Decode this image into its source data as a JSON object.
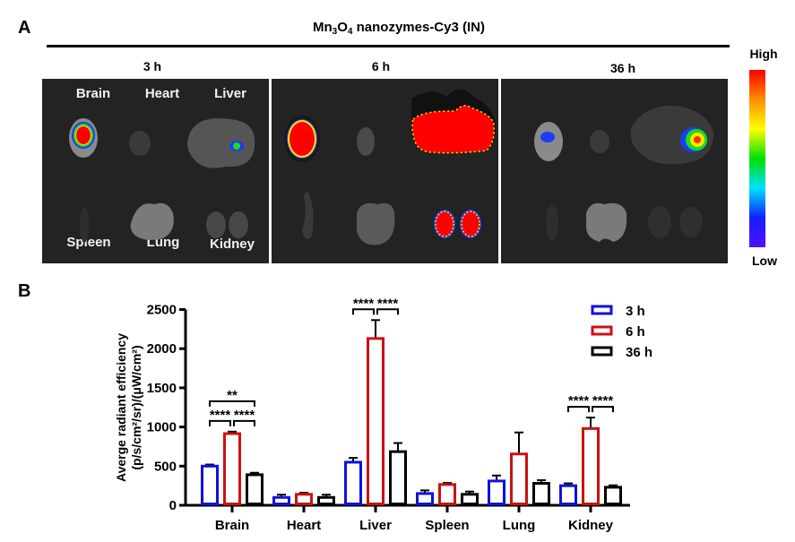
{
  "panel_a": {
    "label": "A",
    "title_parts": [
      "Mn",
      "3",
      "O",
      "4",
      " nanozymes-Cy3 (IN)"
    ],
    "timepoints": [
      "3 h",
      "6 h",
      "36 h"
    ],
    "organ_labels": [
      "Brain",
      "Heart",
      "Liver",
      "Spleen",
      "Lung",
      "Kidney"
    ],
    "colorbar": {
      "high_label": "High",
      "low_label": "Low",
      "colors": [
        "#ff0000",
        "#ff8c00",
        "#ffff00",
        "#00e000",
        "#00e0ff",
        "#1020ff",
        "#5010ff"
      ]
    },
    "panel_bg": "#232323"
  },
  "panel_b": {
    "label": "B"
  },
  "chart_data": {
    "type": "bar",
    "title": "",
    "xlabel": "",
    "ylabel_line1": "Averge radiant efficiency",
    "ylabel_line2": "(p/s/cm²/sr)/(μW/cm²)",
    "categories": [
      "Brain",
      "Heart",
      "Liver",
      "Spleen",
      "Lung",
      "Kidney"
    ],
    "ylim": [
      0,
      2500
    ],
    "yticks": [
      0,
      500,
      1000,
      1500,
      2000,
      2500
    ],
    "ytick_labels": [
      "0",
      "500",
      "1000",
      "1500",
      "2000",
      "2500"
    ],
    "grid": false,
    "legend_position": "top-right",
    "series": [
      {
        "name": "3 h",
        "color": "#1010e0",
        "values": [
          500,
          100,
          550,
          150,
          310,
          250
        ],
        "error": [
          20,
          35,
          55,
          40,
          70,
          30
        ]
      },
      {
        "name": "6 h",
        "color": "#cc1111",
        "values": [
          915,
          140,
          2130,
          265,
          655,
          980
        ],
        "error": [
          25,
          20,
          235,
          20,
          275,
          140
        ]
      },
      {
        "name": "36 h",
        "color": "#000000",
        "values": [
          390,
          100,
          685,
          140,
          280,
          230
        ],
        "error": [
          25,
          35,
          110,
          35,
          40,
          25
        ]
      }
    ],
    "annotations": [
      {
        "category": "Brain",
        "pair": [
          "3 h",
          "6 h"
        ],
        "text": "****",
        "level": 1
      },
      {
        "category": "Brain",
        "pair": [
          "6 h",
          "36 h"
        ],
        "text": "****",
        "level": 1
      },
      {
        "category": "Brain",
        "pair": [
          "3 h",
          "36 h"
        ],
        "text": "**",
        "level": 2
      },
      {
        "category": "Liver",
        "pair": [
          "3 h",
          "6 h"
        ],
        "text": "****",
        "level": 1
      },
      {
        "category": "Liver",
        "pair": [
          "6 h",
          "36 h"
        ],
        "text": "****",
        "level": 1
      },
      {
        "category": "Kidney",
        "pair": [
          "3 h",
          "6 h"
        ],
        "text": "****",
        "level": 1
      },
      {
        "category": "Kidney",
        "pair": [
          "6 h",
          "36 h"
        ],
        "text": "****",
        "level": 1
      }
    ]
  }
}
